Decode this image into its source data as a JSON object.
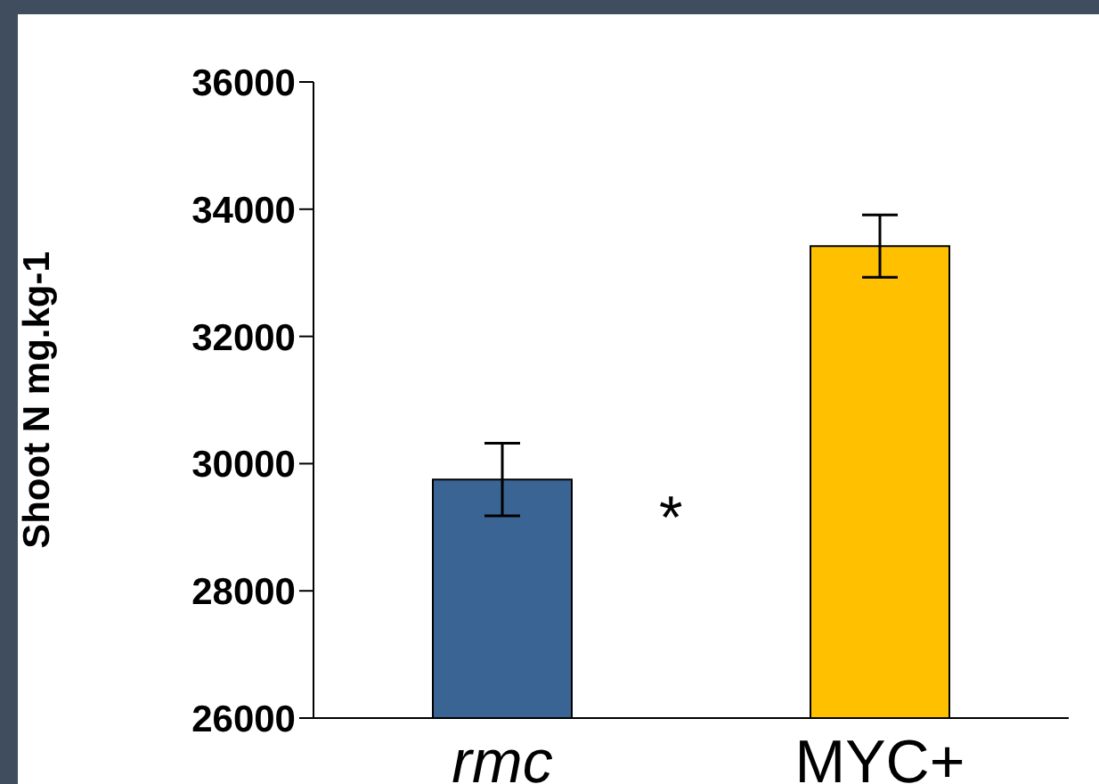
{
  "chart_data": {
    "type": "bar",
    "ylabel": "Shoot N mg.kg-1",
    "categories": [
      "rmc",
      "MYC+"
    ],
    "values": [
      29750,
      33420
    ],
    "colors": [
      "#3a6494",
      "#ffc000"
    ],
    "errors": [
      570,
      490
    ],
    "ylim": [
      26000,
      36000
    ],
    "yticks": [
      26000,
      28000,
      30000,
      32000,
      34000,
      36000
    ],
    "annotations": [
      "*"
    ],
    "grid": false,
    "legend": false
  }
}
